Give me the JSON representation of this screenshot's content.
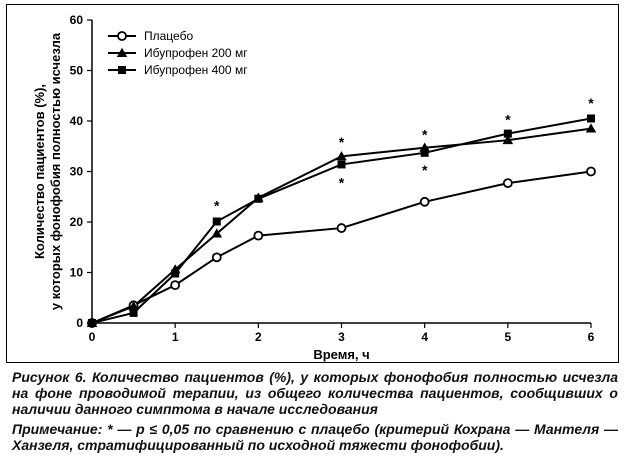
{
  "chart_data": {
    "type": "line",
    "x": [
      0,
      0.5,
      1,
      1.5,
      2,
      3,
      4,
      5,
      6
    ],
    "xticks": [
      "0",
      "1",
      "2",
      "3",
      "4",
      "5",
      "6"
    ],
    "yticks": [
      "0",
      "10",
      "20",
      "30",
      "40",
      "50",
      "60"
    ],
    "xlim": [
      0,
      6
    ],
    "ylim": [
      0,
      60
    ],
    "xlabel": "Время, ч",
    "ylabel_line1": "Количество пациентов (%),",
    "ylabel_line2": "у которых фонофобия полностью исчезла",
    "legend_position": "top-left",
    "grid": false,
    "series": [
      {
        "name": "Плацебо",
        "marker": "open-circle",
        "color": "#000000",
        "values": [
          0,
          3.5,
          7.5,
          13,
          17.3,
          18.8,
          24,
          27.7,
          30
        ]
      },
      {
        "name": "Ибупрофен 200 мг",
        "marker": "filled-triangle",
        "color": "#000000",
        "values": [
          0,
          3.3,
          10.6,
          17.7,
          24.8,
          33,
          34.7,
          36.2,
          38.5
        ]
      },
      {
        "name": "Ибупрофен 400 мг",
        "marker": "filled-square",
        "color": "#000000",
        "values": [
          0,
          2,
          9.8,
          20.1,
          24.6,
          31.4,
          33.7,
          37.5,
          40.5
        ]
      }
    ],
    "significance_marks": [
      {
        "x": 1.5,
        "y": 23.5,
        "label": "*"
      },
      {
        "x": 3,
        "y": 36,
        "label": "*"
      },
      {
        "x": 3,
        "y": 28,
        "label": "*"
      },
      {
        "x": 4,
        "y": 37.5,
        "label": "*"
      },
      {
        "x": 4,
        "y": 30.5,
        "label": "*"
      },
      {
        "x": 5,
        "y": 40.5,
        "label": "*"
      },
      {
        "x": 6,
        "y": 43.8,
        "label": "*"
      }
    ]
  },
  "caption": {
    "main": "Рисунок 6. Количество пациентов (%), у которых фонофобия полностью исчезла на фоне проводимой терапии, из общего количества пациентов, сообщивших о наличии данного симптома в начале исследования",
    "note": "Примечание: * — p ≤ 0,05 по сравнению с плацебо (критерий Кохрана — Мантеля — Ханзеля, стратифицированный по исходной тяжести фонофобии)."
  }
}
